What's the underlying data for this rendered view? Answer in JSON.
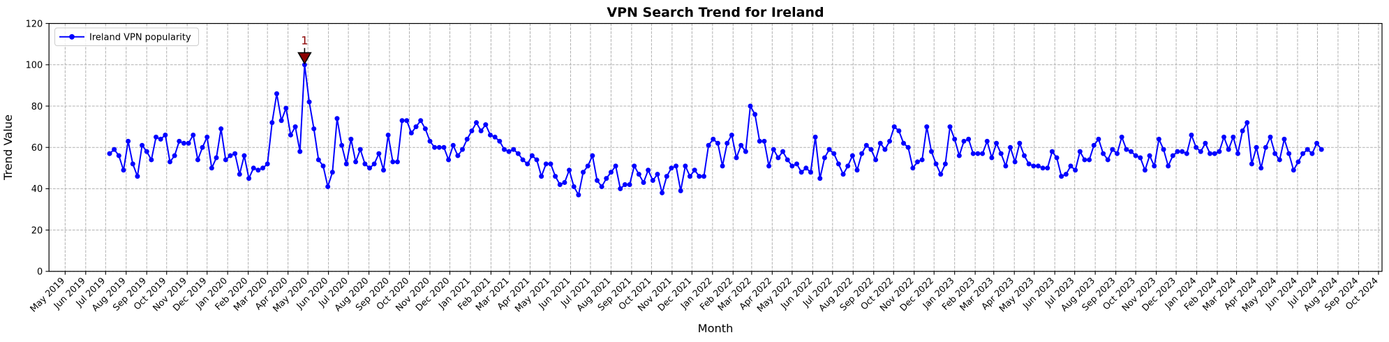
{
  "chart_data": {
    "type": "line",
    "title": "VPN Search Trend for Ireland",
    "xlabel": "Month",
    "ylabel": "Trend Value",
    "ylim": [
      0,
      120
    ],
    "yticks": [
      0,
      20,
      40,
      60,
      80,
      100,
      120
    ],
    "xtick_start": "2019-05-01",
    "xtick_end": "2024-10-01",
    "xtick_format": "Mon YYYY",
    "xtick_labels": [
      "May 2019",
      "Jun 2019",
      "Jul 2019",
      "Aug 2019",
      "Sep 2019",
      "Oct 2019",
      "Nov 2019",
      "Dec 2019",
      "Jan 2020",
      "Feb 2020",
      "Mar 2020",
      "Apr 2020",
      "May 2020",
      "Jun 2020",
      "Jul 2020",
      "Aug 2020",
      "Sep 2020",
      "Oct 2020",
      "Nov 2020",
      "Dec 2020",
      "Jan 2021",
      "Feb 2021",
      "Mar 2021",
      "Apr 2021",
      "May 2021",
      "Jun 2021",
      "Jul 2021",
      "Aug 2021",
      "Sep 2021",
      "Oct 2021",
      "Nov 2021",
      "Dec 2021",
      "Jan 2022",
      "Feb 2022",
      "Mar 2022",
      "Apr 2022",
      "May 2022",
      "Jun 2022",
      "Jul 2022",
      "Aug 2022",
      "Sep 2022",
      "Oct 2022",
      "Nov 2022",
      "Dec 2022",
      "Jan 2023",
      "Feb 2023",
      "Mar 2023",
      "Apr 2023",
      "May 2023",
      "Jun 2023",
      "Jul 2023",
      "Aug 2023",
      "Sep 2023",
      "Oct 2023",
      "Nov 2023",
      "Dec 2023",
      "Jan 2024",
      "Feb 2024",
      "Mar 2024",
      "Apr 2024",
      "May 2024",
      "Jun 2024",
      "Jul 2024",
      "Aug 2024",
      "Sep 2024",
      "Oct 2024"
    ],
    "grid": true,
    "legend_position": "upper left",
    "series": [
      {
        "name": "Ireland VPN popularity",
        "color": "#0000ff",
        "marker": "circle",
        "start_date": "2019-07-07",
        "interval_days": 7,
        "values": [
          57,
          59,
          56,
          49,
          63,
          52,
          46,
          61,
          58,
          54,
          65,
          64,
          66,
          53,
          56,
          63,
          62,
          62,
          66,
          54,
          60,
          65,
          50,
          55,
          69,
          54,
          56,
          57,
          47,
          56,
          45,
          50,
          49,
          50,
          52,
          72,
          86,
          73,
          79,
          66,
          70,
          58,
          100,
          82,
          69,
          54,
          51,
          41,
          48,
          74,
          61,
          52,
          64,
          53,
          59,
          52,
          50,
          52,
          57,
          49,
          66,
          53,
          53,
          73,
          73,
          67,
          70,
          73,
          69,
          63,
          60,
          60,
          60,
          54,
          61,
          56,
          59,
          64,
          68,
          72,
          68,
          71,
          66,
          65,
          63,
          59,
          58,
          59,
          57,
          54,
          52,
          56,
          54,
          46,
          52,
          52,
          46,
          42,
          43,
          49,
          41,
          37,
          48,
          51,
          56,
          44,
          41,
          45,
          48,
          51,
          40,
          42,
          42,
          51,
          47,
          43,
          49,
          44,
          47,
          38,
          46,
          50,
          51,
          39,
          51,
          46,
          49,
          46,
          46,
          61,
          64,
          62,
          51,
          62,
          66,
          55,
          61,
          58,
          80,
          76,
          63,
          63,
          51,
          59,
          55,
          58,
          54,
          51,
          52,
          48,
          50,
          48,
          65,
          45,
          55,
          59,
          57,
          52,
          47,
          51,
          56,
          49,
          57,
          61,
          59,
          54,
          62,
          59,
          63,
          70,
          68,
          62,
          60,
          50,
          53,
          54,
          70,
          58,
          52,
          47,
          52,
          70,
          64,
          56,
          63,
          64,
          57,
          57,
          57,
          63,
          55,
          62,
          57,
          51,
          60,
          53,
          62,
          56,
          52,
          51,
          51,
          50,
          50,
          58,
          55,
          46,
          47,
          51,
          49,
          58,
          54,
          54,
          61,
          64,
          57,
          54,
          59,
          57,
          65,
          59,
          58,
          56,
          55,
          49,
          56,
          51,
          64,
          59,
          51,
          56,
          58,
          58,
          57,
          66,
          60,
          58,
          62,
          57,
          57,
          58,
          65,
          59,
          65,
          57,
          68,
          72,
          52,
          60,
          50,
          60,
          65,
          57,
          54,
          64,
          57,
          49,
          53,
          57,
          59,
          57,
          62,
          59
        ]
      }
    ],
    "annotation": {
      "label": "1",
      "point_index": 42,
      "point_date": "2020-04-26",
      "point_value": 100,
      "marker": "triangle-down",
      "color": "#8b0000"
    }
  },
  "legend": {
    "entries": [
      {
        "label": "Ireland VPN popularity",
        "color": "#0000ff"
      }
    ]
  },
  "colors": {
    "line": "#0000ff",
    "annotation": "#8b0000",
    "grid": "#b0b0b0",
    "text": "#000000",
    "spine": "#000000",
    "legend_border": "#cccccc",
    "background": "#ffffff"
  },
  "layout_text": {
    "title": "VPN Search Trend for Ireland",
    "xlabel": "Month",
    "ylabel": "Trend Value"
  }
}
